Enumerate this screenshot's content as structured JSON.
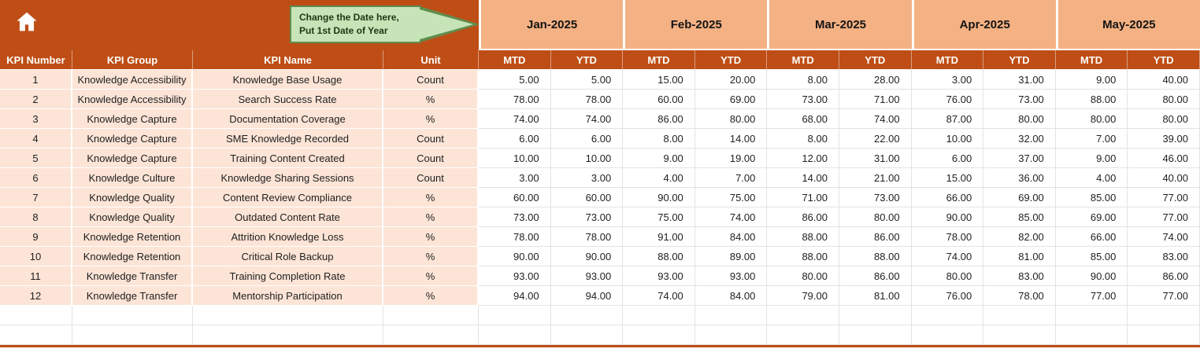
{
  "colors": {
    "header_rust": "#BE4E16",
    "month_band": "#F4B183",
    "left_cols_bg": "#FCE4D6",
    "callout_fill": "#C7E4B8",
    "callout_border": "#5F8D4E"
  },
  "header": {
    "home_icon": "home-icon",
    "callout": {
      "line1": "Change the Date here,",
      "line2": "Put 1st Date of Year"
    }
  },
  "table": {
    "months": [
      "Jan-2025",
      "Feb-2025",
      "Mar-2025",
      "Apr-2025",
      "May-2025"
    ],
    "sub_headers": [
      "MTD",
      "YTD"
    ],
    "left_headers": [
      "KPI Number",
      "KPI Group",
      "KPI Name",
      "Unit"
    ],
    "rows": [
      {
        "kpi_number": "1",
        "kpi_group": "Knowledge Accessibility",
        "kpi_name": "Knowledge Base Usage",
        "unit": "Count",
        "values": [
          "5.00",
          "5.00",
          "15.00",
          "20.00",
          "8.00",
          "28.00",
          "3.00",
          "31.00",
          "9.00",
          "40.00"
        ]
      },
      {
        "kpi_number": "2",
        "kpi_group": "Knowledge Accessibility",
        "kpi_name": "Search Success Rate",
        "unit": "%",
        "values": [
          "78.00",
          "78.00",
          "60.00",
          "69.00",
          "73.00",
          "71.00",
          "76.00",
          "73.00",
          "88.00",
          "80.00"
        ]
      },
      {
        "kpi_number": "3",
        "kpi_group": "Knowledge Capture",
        "kpi_name": "Documentation Coverage",
        "unit": "%",
        "values": [
          "74.00",
          "74.00",
          "86.00",
          "80.00",
          "68.00",
          "74.00",
          "87.00",
          "80.00",
          "80.00",
          "80.00"
        ]
      },
      {
        "kpi_number": "4",
        "kpi_group": "Knowledge Capture",
        "kpi_name": "SME Knowledge Recorded",
        "unit": "Count",
        "values": [
          "6.00",
          "6.00",
          "8.00",
          "14.00",
          "8.00",
          "22.00",
          "10.00",
          "32.00",
          "7.00",
          "39.00"
        ]
      },
      {
        "kpi_number": "5",
        "kpi_group": "Knowledge Capture",
        "kpi_name": "Training Content Created",
        "unit": "Count",
        "values": [
          "10.00",
          "10.00",
          "9.00",
          "19.00",
          "12.00",
          "31.00",
          "6.00",
          "37.00",
          "9.00",
          "46.00"
        ]
      },
      {
        "kpi_number": "6",
        "kpi_group": "Knowledge Culture",
        "kpi_name": "Knowledge Sharing Sessions",
        "unit": "Count",
        "values": [
          "3.00",
          "3.00",
          "4.00",
          "7.00",
          "14.00",
          "21.00",
          "15.00",
          "36.00",
          "4.00",
          "40.00"
        ]
      },
      {
        "kpi_number": "7",
        "kpi_group": "Knowledge Quality",
        "kpi_name": "Content Review Compliance",
        "unit": "%",
        "values": [
          "60.00",
          "60.00",
          "90.00",
          "75.00",
          "71.00",
          "73.00",
          "66.00",
          "69.00",
          "85.00",
          "77.00"
        ]
      },
      {
        "kpi_number": "8",
        "kpi_group": "Knowledge Quality",
        "kpi_name": "Outdated Content Rate",
        "unit": "%",
        "values": [
          "73.00",
          "73.00",
          "75.00",
          "74.00",
          "86.00",
          "80.00",
          "90.00",
          "85.00",
          "69.00",
          "77.00"
        ]
      },
      {
        "kpi_number": "9",
        "kpi_group": "Knowledge Retention",
        "kpi_name": "Attrition Knowledge Loss",
        "unit": "%",
        "values": [
          "78.00",
          "78.00",
          "91.00",
          "84.00",
          "88.00",
          "86.00",
          "78.00",
          "82.00",
          "66.00",
          "74.00"
        ]
      },
      {
        "kpi_number": "10",
        "kpi_group": "Knowledge Retention",
        "kpi_name": "Critical Role Backup",
        "unit": "%",
        "values": [
          "90.00",
          "90.00",
          "88.00",
          "89.00",
          "88.00",
          "88.00",
          "74.00",
          "81.00",
          "85.00",
          "83.00"
        ]
      },
      {
        "kpi_number": "11",
        "kpi_group": "Knowledge Transfer",
        "kpi_name": "Training Completion Rate",
        "unit": "%",
        "values": [
          "93.00",
          "93.00",
          "93.00",
          "93.00",
          "80.00",
          "86.00",
          "80.00",
          "83.00",
          "90.00",
          "86.00"
        ]
      },
      {
        "kpi_number": "12",
        "kpi_group": "Knowledge Transfer",
        "kpi_name": "Mentorship Participation",
        "unit": "%",
        "values": [
          "94.00",
          "94.00",
          "74.00",
          "84.00",
          "79.00",
          "81.00",
          "76.00",
          "78.00",
          "77.00",
          "77.00"
        ]
      }
    ],
    "empty_rows": 2
  }
}
